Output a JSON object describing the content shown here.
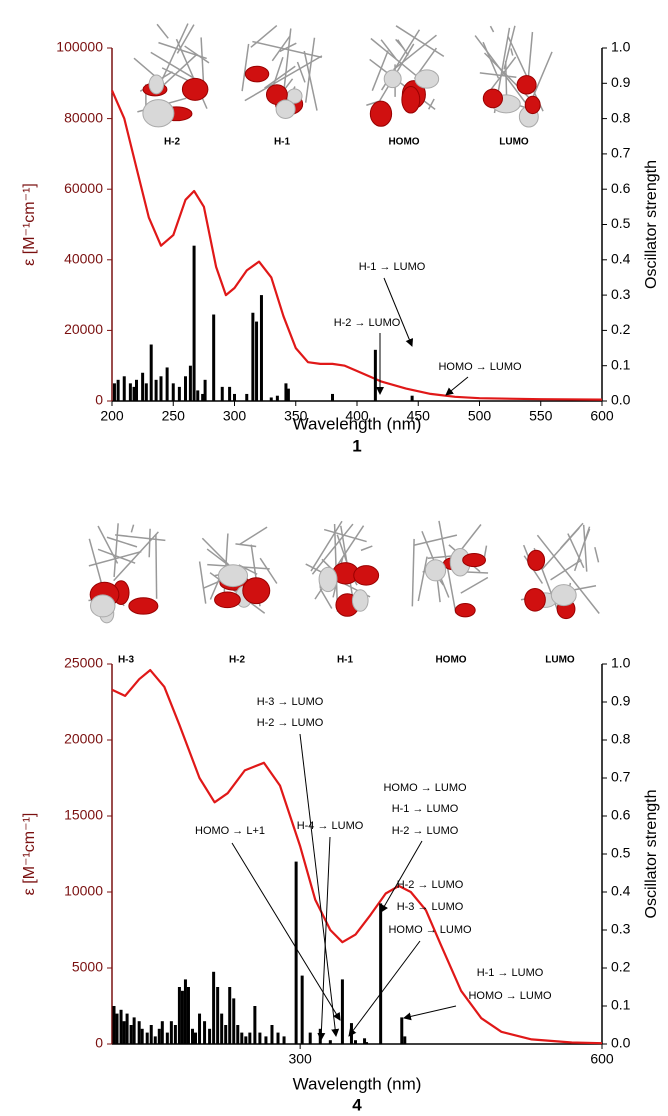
{
  "chart_data": [
    {
      "type": "line",
      "panel_label": "1",
      "x_label": "Wavelength (nm)",
      "y_label": "ε [M⁻¹cm⁻¹]",
      "y2_label": "Oscillator strength",
      "orbital_labels": [
        "H-2",
        "H-1",
        "HOMO",
        "LUMO"
      ],
      "xlim": [
        200,
        600
      ],
      "xticks": [
        200,
        250,
        300,
        350,
        400,
        450,
        500,
        550,
        600
      ],
      "ylim": [
        0,
        100000
      ],
      "yticks": [
        0,
        20000,
        40000,
        60000,
        80000,
        100000
      ],
      "y2lim": [
        0,
        1.0
      ],
      "y2ticks": [
        {
          "value": 0,
          "label": "0.0"
        },
        0.1,
        0.2,
        0.3,
        0.4,
        0.5,
        0.6,
        0.7,
        0.8,
        0.9,
        {
          "value": 1,
          "label": "1.0"
        }
      ],
      "series": [
        {
          "color": "#e01818",
          "x": [
            200,
            210,
            220,
            230,
            240,
            250,
            260,
            267,
            275,
            285,
            293,
            300,
            310,
            320,
            330,
            340,
            350,
            360,
            370,
            380,
            390,
            400,
            420,
            440,
            460,
            480,
            500,
            550,
            600
          ],
          "values": [
            88000,
            80000,
            66000,
            52000,
            44000,
            47000,
            57000,
            59500,
            55000,
            38000,
            30000,
            32000,
            37000,
            39500,
            35000,
            24000,
            15000,
            11000,
            10500,
            10500,
            10000,
            8500,
            5500,
            3500,
            2000,
            1200,
            800,
            500,
            400
          ]
        },
        {
          "type": "bar",
          "axis": "y2",
          "color": "#000000",
          "x": [
            202,
            205,
            210,
            215,
            218,
            220,
            225,
            228,
            232,
            236,
            240,
            245,
            250,
            255,
            260,
            264,
            267,
            270,
            274,
            276,
            283,
            290,
            296,
            300,
            310,
            315,
            318,
            322,
            330,
            335,
            342,
            344,
            380,
            415,
            445
          ],
          "values": [
            0.05,
            0.06,
            0.07,
            0.05,
            0.04,
            0.06,
            0.08,
            0.05,
            0.16,
            0.06,
            0.07,
            0.095,
            0.05,
            0.04,
            0.07,
            0.1,
            0.44,
            0.03,
            0.02,
            0.06,
            0.245,
            0.04,
            0.04,
            0.02,
            0.02,
            0.25,
            0.225,
            0.3,
            0.01,
            0.015,
            0.05,
            0.035,
            0.02,
            0.145,
            0.015
          ]
        }
      ],
      "annotations": [
        [
          "H-2 → LUMO"
        ],
        [
          "H-1 → LUMO"
        ],
        [
          "HOMO → LUMO"
        ]
      ]
    },
    {
      "type": "line",
      "panel_label": "4",
      "x_label": "Wavelength (nm)",
      "y_label": "ε [M⁻¹cm⁻¹]",
      "y2_label": "Oscillator strength",
      "orbital_labels": [
        "H-3",
        "H-2",
        "H-1",
        "HOMO",
        "LUMO"
      ],
      "xlim": [
        113,
        600
      ],
      "xticks": [
        300,
        600
      ],
      "ylim": [
        0,
        25000
      ],
      "yticks": [
        0,
        5000,
        10000,
        15000,
        20000,
        25000
      ],
      "y2lim": [
        0,
        1.0
      ],
      "y2ticks": [
        {
          "value": 0,
          "label": "0.0"
        },
        0.1,
        0.2,
        0.3,
        0.4,
        0.5,
        0.6,
        0.7,
        0.8,
        0.9,
        {
          "value": 1,
          "label": "1.0"
        }
      ],
      "series": [
        {
          "color": "#e01818",
          "x": [
            113,
            126,
            140,
            151,
            165,
            180,
            200,
            215,
            228,
            245,
            264,
            280,
            300,
            315,
            330,
            342,
            355,
            370,
            385,
            398,
            410,
            425,
            440,
            460,
            480,
            500,
            530,
            570,
            600
          ],
          "values": [
            23300,
            22900,
            24000,
            24600,
            23500,
            21000,
            17500,
            15900,
            16500,
            18000,
            18500,
            17000,
            13000,
            9500,
            7500,
            6700,
            7200,
            8500,
            9900,
            10400,
            10000,
            8800,
            6500,
            3500,
            1700,
            800,
            300,
            100,
            50
          ]
        },
        {
          "type": "bar",
          "axis": "y2",
          "color": "#000000",
          "x": [
            115,
            118,
            122,
            125,
            128,
            132,
            135,
            140,
            143,
            148,
            152,
            156,
            160,
            163,
            168,
            172,
            176,
            180,
            183,
            186,
            189,
            193,
            196,
            200,
            205,
            210,
            214,
            218,
            222,
            226,
            230,
            234,
            238,
            242,
            246,
            250,
            255,
            260,
            266,
            272,
            278,
            284,
            296,
            302,
            310,
            320,
            330,
            342,
            351,
            355,
            364,
            366,
            380,
            401,
            404
          ],
          "values": [
            0.1,
            0.08,
            0.09,
            0.06,
            0.08,
            0.05,
            0.07,
            0.06,
            0.04,
            0.03,
            0.05,
            0.02,
            0.04,
            0.06,
            0.03,
            0.06,
            0.05,
            0.15,
            0.14,
            0.17,
            0.15,
            0.04,
            0.03,
            0.08,
            0.06,
            0.04,
            0.19,
            0.15,
            0.08,
            0.05,
            0.15,
            0.12,
            0.05,
            0.03,
            0.02,
            0.03,
            0.1,
            0.03,
            0.02,
            0.05,
            0.03,
            0.02,
            0.48,
            0.18,
            0.03,
            0.04,
            0.01,
            0.17,
            0.055,
            0.01,
            0.015,
            0.005,
            0.37,
            0.07,
            0.02
          ]
        }
      ],
      "annotations": [
        [
          "HOMO → L+1"
        ],
        [
          "H-3 → LUMO",
          "H-2 → LUMO"
        ],
        [
          "H-4 → LUMO"
        ],
        [
          "HOMO → LUMO",
          "H-1 → LUMO",
          "H-2 → LUMO"
        ],
        [
          "H-2 → LUMO",
          "H-3 → LUMO",
          "HOMO → LUMO"
        ],
        [
          "H-1 → LUMO",
          "HOMO → LUMO"
        ]
      ]
    }
  ]
}
